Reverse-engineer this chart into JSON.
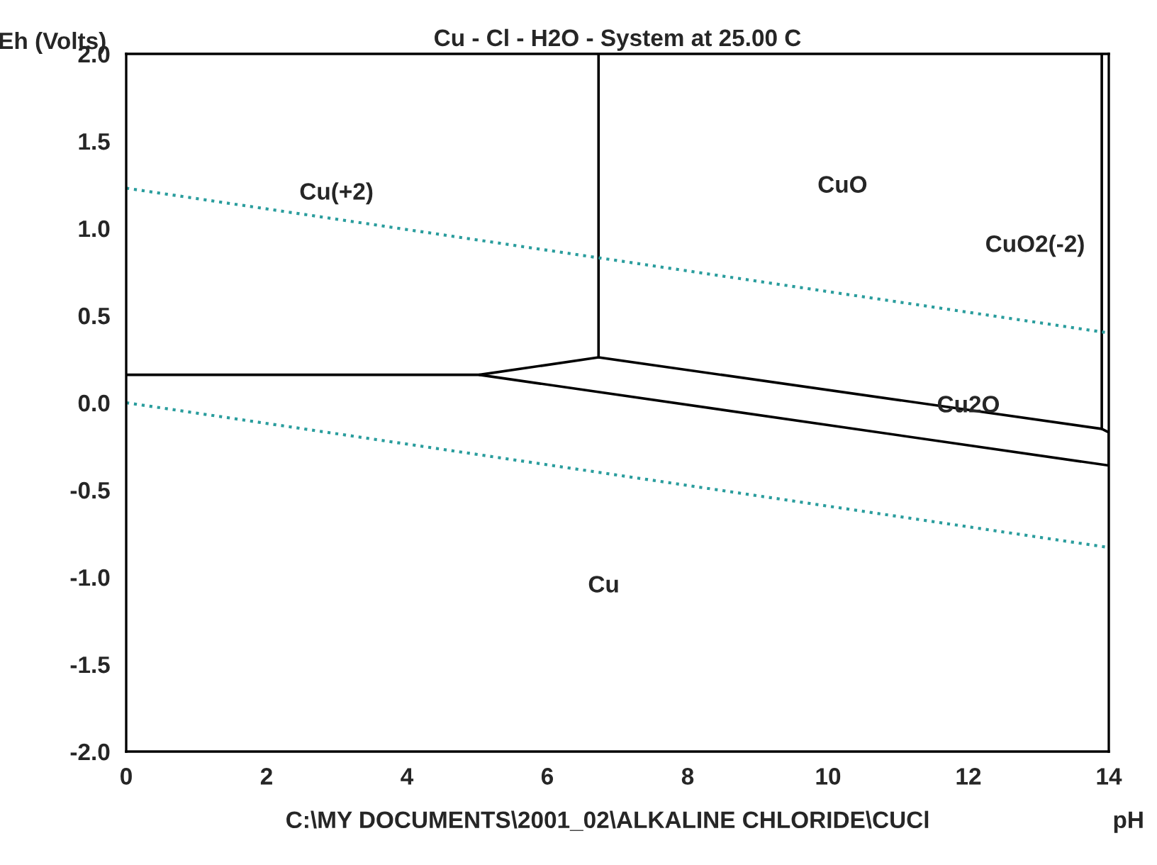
{
  "chart_data": {
    "type": "line",
    "title": "Cu - Cl - H2O - System at 25.00 C",
    "xlabel": "pH",
    "ylabel": "Eh (Volts)",
    "xlim": [
      0,
      14
    ],
    "ylim": [
      -2.0,
      2.0
    ],
    "xticks": [
      0,
      2,
      4,
      6,
      8,
      10,
      12,
      14
    ],
    "yticks": [
      {
        "value": -2.0,
        "label": "-2.0"
      },
      {
        "value": -1.5,
        "label": "-1.5"
      },
      {
        "value": -1.0,
        "label": "-1.0"
      },
      {
        "value": -0.5,
        "label": "-0.5"
      },
      {
        "value": 0.0,
        "label": "0.0"
      },
      {
        "value": 0.5,
        "label": "0.5"
      },
      {
        "value": 1.0,
        "label": "1.0"
      },
      {
        "value": 1.5,
        "label": "1.5"
      },
      {
        "value": 2.0,
        "label": "2.0"
      }
    ],
    "grid": false,
    "legend": false,
    "marker": "none",
    "series": [
      {
        "color": "#000000",
        "line_style": "solid",
        "x": [
          0,
          5.03,
          6.73,
          6.73
        ],
        "values": [
          0.16,
          0.16,
          0.26,
          2.0
        ]
      },
      {
        "color": "#000000",
        "line_style": "solid",
        "x": [
          13.9,
          13.9,
          6.73
        ],
        "values": [
          2.0,
          -0.15,
          0.26
        ]
      },
      {
        "color": "#000000",
        "line_style": "solid",
        "x": [
          5.03,
          14,
          14,
          13.9
        ],
        "values": [
          0.16,
          -0.36,
          -0.17,
          -0.15
        ]
      },
      {
        "color": "#2a9d9d",
        "line_style": "dotted",
        "x": [
          0,
          14
        ],
        "values": [
          1.23,
          0.4
        ]
      },
      {
        "color": "#2a9d9d",
        "line_style": "dotted",
        "x": [
          0,
          14
        ],
        "values": [
          0.0,
          -0.83
        ]
      }
    ],
    "annotations": [
      "Cu(+2)",
      "CuO",
      "CuO2(-2)",
      {
        "text": "Cu2O",
        "x": 12.0,
        "y": -0.02
      },
      "Cu",
      "C:\\MY DOCUMENTS\\2001_02\\ALKALINE CHLORIDE\\CUCl"
    ]
  }
}
